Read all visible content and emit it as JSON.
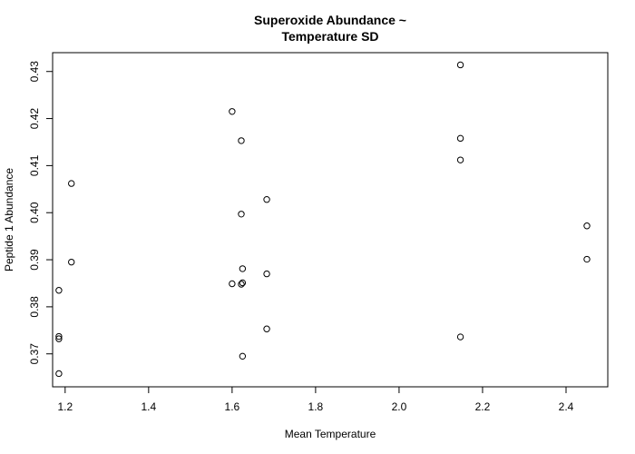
{
  "chart_data": {
    "type": "scatter",
    "title_lines": [
      "Superoxide Abundance ~",
      "Temperature SD"
    ],
    "xlabel": "Mean Temperature",
    "ylabel": "Peptide 1 Abundance",
    "xlim": [
      1.17,
      2.5
    ],
    "ylim": [
      0.363,
      0.434
    ],
    "xticks": [
      1.2,
      1.4,
      1.6,
      1.8,
      2.0,
      2.2,
      2.4
    ],
    "xtick_labels": [
      "1.2",
      "1.4",
      "1.6",
      "1.8",
      "2.0",
      "2.2",
      "2.4"
    ],
    "yticks": [
      0.37,
      0.38,
      0.39,
      0.4,
      0.41,
      0.42,
      0.43
    ],
    "ytick_labels": [
      "0.37",
      "0.38",
      "0.39",
      "0.40",
      "0.41",
      "0.42",
      "0.43"
    ],
    "grid": false,
    "marker": "open-circle",
    "marker_color": "#000000",
    "points": [
      {
        "x": 1.185,
        "y": 0.3835
      },
      {
        "x": 1.185,
        "y": 0.3737
      },
      {
        "x": 1.185,
        "y": 0.3732
      },
      {
        "x": 1.185,
        "y": 0.3658
      },
      {
        "x": 1.215,
        "y": 0.4062
      },
      {
        "x": 1.215,
        "y": 0.3895
      },
      {
        "x": 1.6,
        "y": 0.4215
      },
      {
        "x": 1.6,
        "y": 0.3849
      },
      {
        "x": 1.622,
        "y": 0.4153
      },
      {
        "x": 1.622,
        "y": 0.3997
      },
      {
        "x": 1.622,
        "y": 0.3848
      },
      {
        "x": 1.625,
        "y": 0.3881
      },
      {
        "x": 1.625,
        "y": 0.3851
      },
      {
        "x": 1.625,
        "y": 0.3695
      },
      {
        "x": 1.683,
        "y": 0.4028
      },
      {
        "x": 1.683,
        "y": 0.387
      },
      {
        "x": 1.683,
        "y": 0.3753
      },
      {
        "x": 2.147,
        "y": 0.4314
      },
      {
        "x": 2.147,
        "y": 0.4158
      },
      {
        "x": 2.147,
        "y": 0.4112
      },
      {
        "x": 2.147,
        "y": 0.3736
      },
      {
        "x": 2.45,
        "y": 0.3972
      },
      {
        "x": 2.45,
        "y": 0.3901
      }
    ]
  }
}
